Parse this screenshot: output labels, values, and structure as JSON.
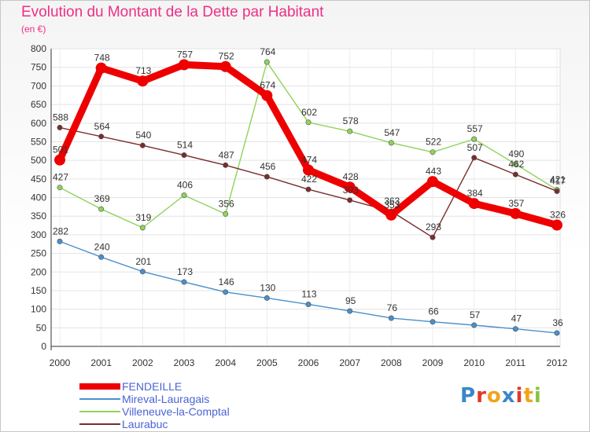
{
  "page": {
    "title": "Evolution du Montant de la Dette par Habitant",
    "subtitle": "(en €)"
  },
  "logo": {
    "letters": [
      "P",
      "r",
      "o",
      "x",
      "i",
      "t",
      "i"
    ],
    "colors": [
      "#3b86c9",
      "#e3382a",
      "#f2a31a",
      "#3b86c9",
      "#e3382a",
      "#f2a31a",
      "#86c440"
    ]
  },
  "chart_data": {
    "type": "line",
    "title": "Evolution du Montant de la Dette par Habitant",
    "subtitle": "(en €)",
    "x": [
      "2000",
      "2001",
      "2002",
      "2003",
      "2004",
      "2005",
      "2006",
      "2007",
      "2008",
      "2009",
      "2010",
      "2011",
      "2012"
    ],
    "ylim": [
      0,
      800
    ],
    "yticks": [
      0,
      50,
      100,
      150,
      200,
      250,
      300,
      350,
      400,
      450,
      500,
      550,
      600,
      650,
      700,
      750,
      800
    ],
    "grid": true,
    "legend_position": "bottom-left",
    "series": [
      {
        "name": "FENDEILLE",
        "color": "#ee0000",
        "values": [
          501,
          748,
          713,
          757,
          752,
          674,
          474,
          428,
          353,
          443,
          384,
          357,
          326
        ],
        "labels": [
          "501",
          "748",
          "713",
          "757",
          "752",
          "674",
          "474",
          "428",
          "353",
          "443",
          "384",
          "357",
          "326"
        ]
      },
      {
        "name": "Mireval-Lauragais",
        "color": "#4a8fcc",
        "values": [
          282,
          240,
          201,
          173,
          146,
          130,
          113,
          95,
          76,
          66,
          57,
          47,
          36
        ],
        "labels": [
          "282",
          "240",
          "201",
          "173",
          "146",
          "130",
          "113",
          "95",
          "76",
          "66",
          "57",
          "47",
          "36"
        ]
      },
      {
        "name": "Villeneuve-la-Comptal",
        "color": "#8fd35a",
        "values": [
          427,
          369,
          319,
          406,
          356,
          764,
          602,
          578,
          547,
          522,
          557,
          490,
          421
        ],
        "labels": [
          "427",
          "369",
          "319",
          "406",
          "356",
          "764",
          "602",
          "578",
          "547",
          "522",
          "557",
          "490",
          "421"
        ]
      },
      {
        "name": "Laurabuc",
        "color": "#7a2c2c",
        "values": [
          588,
          564,
          540,
          514,
          487,
          456,
          422,
          393,
          363,
          293,
          507,
          462,
          417
        ],
        "labels": [
          "588",
          "564",
          "540",
          "514",
          "487",
          "456",
          "422",
          "393",
          "363",
          "293",
          "507",
          "462",
          "417"
        ]
      }
    ]
  }
}
